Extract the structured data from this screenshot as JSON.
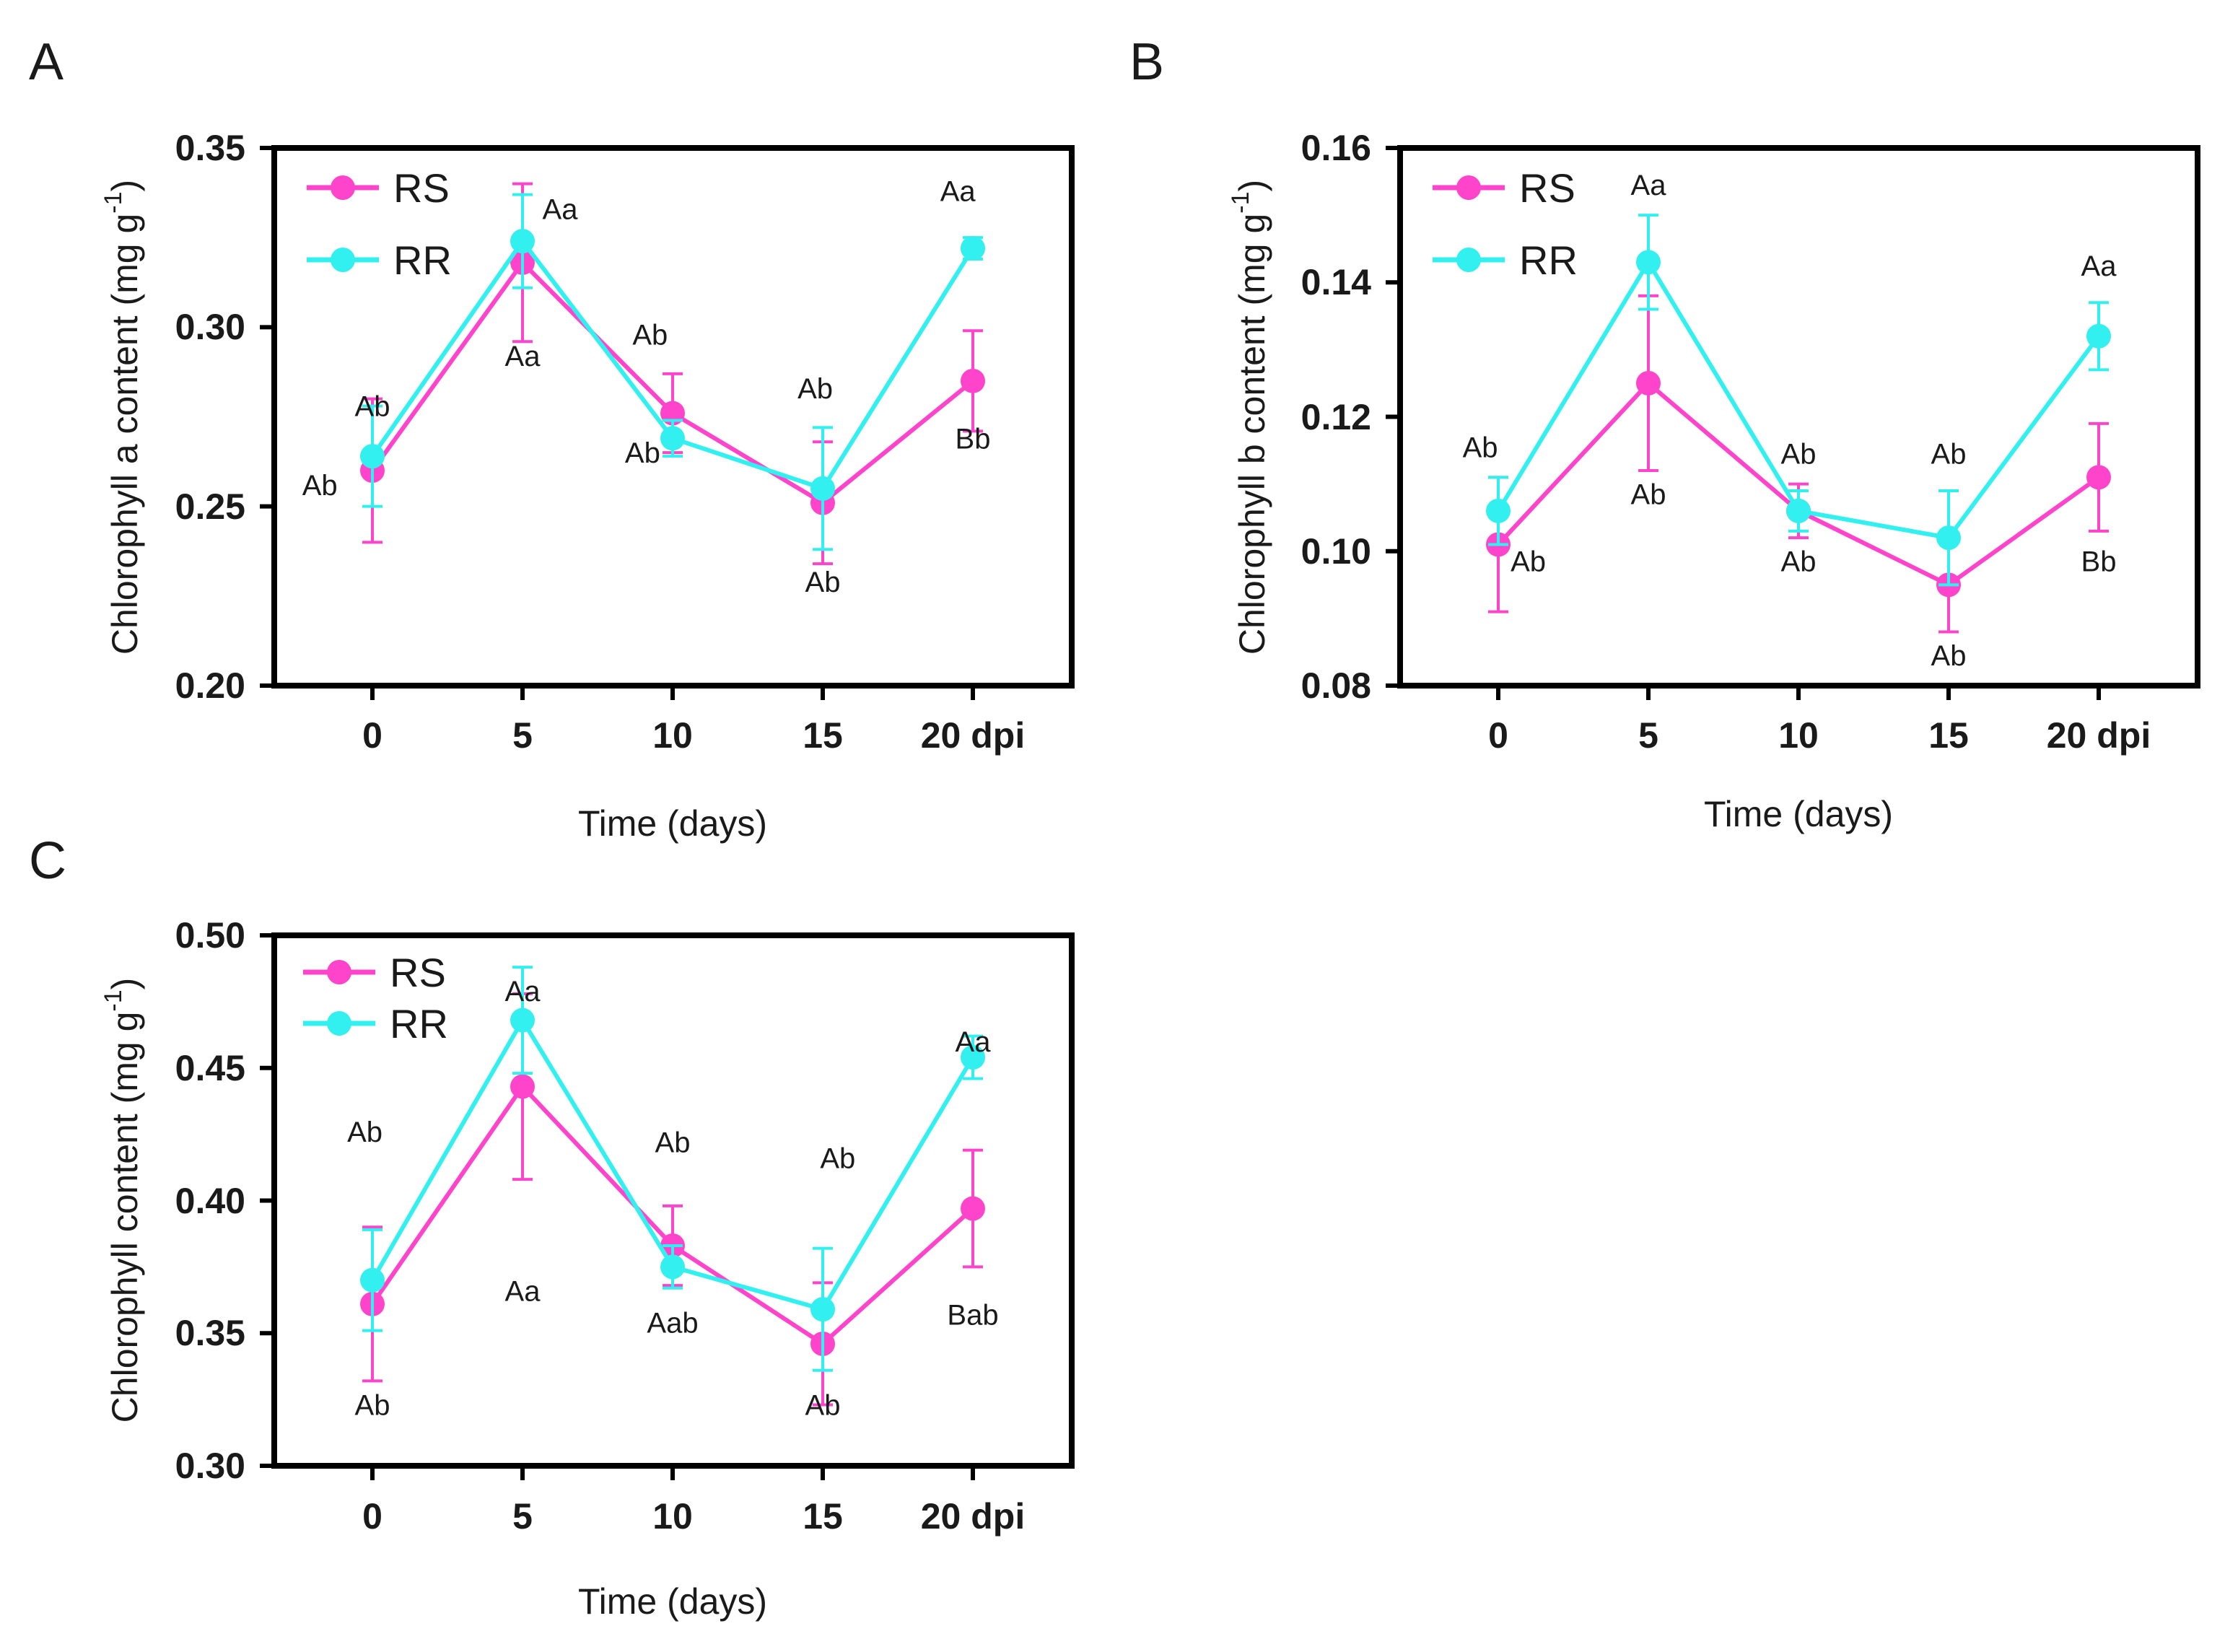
{
  "colors": {
    "RS": "#ff44cc",
    "RR": "#33f0f0",
    "axis": "#000000"
  },
  "chart_data": [
    {
      "panel": "A",
      "type": "line",
      "xlabel": "Time (days)",
      "ylabel": "Chlorophyll a content (mg g",
      "ylabel_sup": "-1",
      "ylabel_close": ")",
      "categories": [
        "0",
        "5",
        "10",
        "15",
        "20 dpi"
      ],
      "ylim": [
        0.2,
        0.35
      ],
      "yticks": [
        "0.20",
        "0.25",
        "0.30",
        "0.35"
      ],
      "series": [
        {
          "name": "RS",
          "values": [
            0.26,
            0.318,
            0.276,
            0.251,
            0.285
          ],
          "errors": [
            0.02,
            0.022,
            0.011,
            0.017,
            0.014
          ]
        },
        {
          "name": "RR",
          "values": [
            0.264,
            0.324,
            0.269,
            0.255,
            0.322
          ],
          "errors": [
            0.014,
            0.013,
            0.005,
            0.017,
            0.003
          ]
        }
      ],
      "annotations": [
        {
          "text": "Ab",
          "x": "0",
          "y": 0.278
        },
        {
          "text": "Ab",
          "x": "0",
          "y": 0.256,
          "dx": -0.35
        },
        {
          "text": "Aa",
          "x": "5",
          "y": 0.333,
          "dx": 0.25
        },
        {
          "text": "Aa",
          "x": "5",
          "y": 0.292
        },
        {
          "text": "Ab",
          "x": "10",
          "y": 0.298,
          "dx": -0.15
        },
        {
          "text": "Ab",
          "x": "10",
          "y": 0.265,
          "dx": -0.2
        },
        {
          "text": "Ab",
          "x": "15",
          "y": 0.283,
          "dx": -0.05
        },
        {
          "text": "Ab",
          "x": "15",
          "y": 0.229
        },
        {
          "text": "Aa",
          "x": "20 dpi",
          "y": 0.338,
          "dx": -0.1
        },
        {
          "text": "Bb",
          "x": "20 dpi",
          "y": 0.269
        }
      ]
    },
    {
      "panel": "B",
      "type": "line",
      "xlabel": "Time (days)",
      "ylabel": "Chlorophyll b content (mg g",
      "ylabel_sup": "-1",
      "ylabel_close": ")",
      "categories": [
        "0",
        "5",
        "10",
        "15",
        "20 dpi"
      ],
      "ylim": [
        0.08,
        0.16
      ],
      "yticks": [
        "0.08",
        "0.10",
        "0.12",
        "0.14",
        "0.16"
      ],
      "series": [
        {
          "name": "RS",
          "values": [
            0.101,
            0.125,
            0.106,
            0.095,
            0.111
          ],
          "errors": [
            0.01,
            0.013,
            0.004,
            0.007,
            0.008
          ]
        },
        {
          "name": "RR",
          "values": [
            0.106,
            0.143,
            0.106,
            0.102,
            0.132
          ],
          "errors": [
            0.005,
            0.007,
            0.003,
            0.007,
            0.005
          ]
        }
      ],
      "annotations": [
        {
          "text": "Ab",
          "x": "0",
          "y": 0.1155,
          "dx": -0.12
        },
        {
          "text": "Ab",
          "x": "0",
          "y": 0.0985,
          "dx": 0.2
        },
        {
          "text": "Aa",
          "x": "5",
          "y": 0.1545
        },
        {
          "text": "Ab",
          "x": "5",
          "y": 0.1085
        },
        {
          "text": "Ab",
          "x": "10",
          "y": 0.1145
        },
        {
          "text": "Ab",
          "x": "10",
          "y": 0.0985
        },
        {
          "text": "Ab",
          "x": "15",
          "y": 0.1145
        },
        {
          "text": "Ab",
          "x": "15",
          "y": 0.0845
        },
        {
          "text": "Aa",
          "x": "20 dpi",
          "y": 0.1425
        },
        {
          "text": "Bb",
          "x": "20 dpi",
          "y": 0.0985
        }
      ]
    },
    {
      "panel": "C",
      "type": "line",
      "xlabel": "Time (days)",
      "ylabel": "Chlorophyll  content (mg g",
      "ylabel_sup": "-1",
      "ylabel_close": ")",
      "categories": [
        "0",
        "5",
        "10",
        "15",
        "20 dpi"
      ],
      "ylim": [
        0.3,
        0.5
      ],
      "yticks": [
        "0.30",
        "0.35",
        "0.40",
        "0.45",
        "0.50"
      ],
      "series": [
        {
          "name": "RS",
          "values": [
            0.361,
            0.443,
            0.383,
            0.346,
            0.397
          ],
          "errors": [
            0.029,
            0.035,
            0.015,
            0.023,
            0.022
          ]
        },
        {
          "name": "RR",
          "values": [
            0.37,
            0.468,
            0.375,
            0.359,
            0.454
          ],
          "errors": [
            0.019,
            0.02,
            0.008,
            0.023,
            0.008
          ]
        }
      ],
      "annotations": [
        {
          "text": "Ab",
          "x": "0",
          "y": 0.426,
          "dx": -0.05
        },
        {
          "text": "Ab",
          "x": "0",
          "y": 0.323
        },
        {
          "text": "Aa",
          "x": "5",
          "y": 0.479
        },
        {
          "text": "Aa",
          "x": "5",
          "y": 0.366
        },
        {
          "text": "Ab",
          "x": "10",
          "y": 0.422
        },
        {
          "text": "Aab",
          "x": "10",
          "y": 0.354
        },
        {
          "text": "Ab",
          "x": "15",
          "y": 0.416,
          "dx": 0.1
        },
        {
          "text": "Ab",
          "x": "15",
          "y": 0.323
        },
        {
          "text": "Aa",
          "x": "20 dpi",
          "y": 0.46
        },
        {
          "text": "Bab",
          "x": "20 dpi",
          "y": 0.357
        }
      ]
    }
  ]
}
